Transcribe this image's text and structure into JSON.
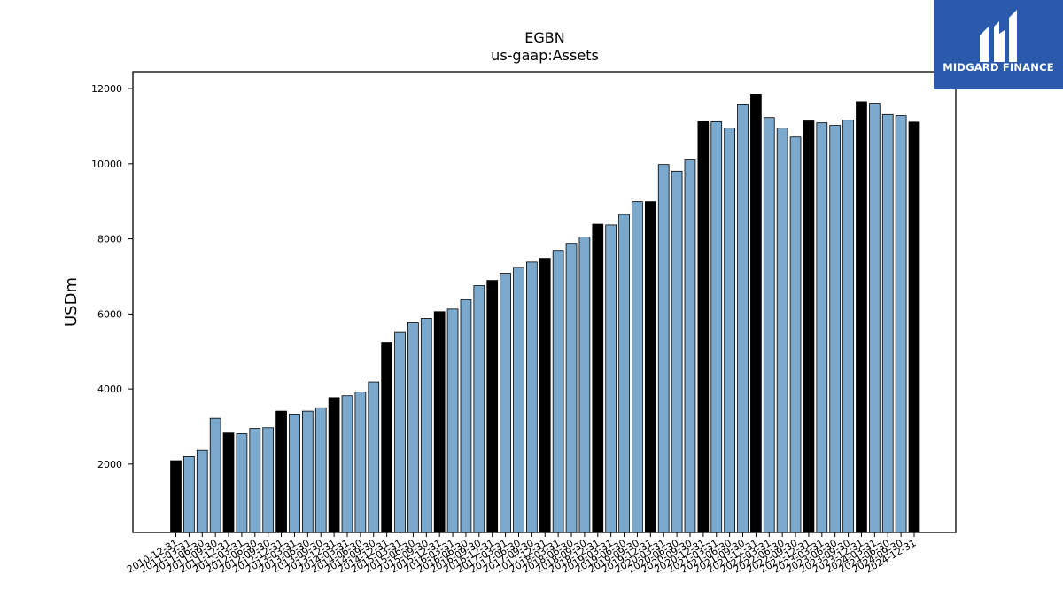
{
  "chart_data": {
    "type": "bar",
    "title": "EGBN",
    "subtitle": "us-gaap:Assets",
    "ylabel": "USDm",
    "xlabel": "",
    "ylim": [
      180,
      12450
    ],
    "yticks": [
      2000,
      4000,
      6000,
      8000,
      10000,
      12000
    ],
    "grid": false,
    "colors": {
      "annual": "#000000",
      "quarter": "#7aa9cd",
      "edge": "#000000"
    },
    "categories": [
      "2010-12-31",
      "2011-03-31",
      "2011-06-30",
      "2011-09-30",
      "2011-12-31",
      "2012-03-31",
      "2012-06-30",
      "2012-09-30",
      "2012-12-31",
      "2013-03-31",
      "2013-06-30",
      "2013-09-30",
      "2013-12-31",
      "2014-03-31",
      "2014-06-30",
      "2014-09-30",
      "2014-12-31",
      "2015-03-31",
      "2015-06-30",
      "2015-09-30",
      "2015-12-31",
      "2016-03-31",
      "2016-06-30",
      "2016-09-30",
      "2016-12-31",
      "2017-03-31",
      "2017-06-30",
      "2017-09-30",
      "2017-12-31",
      "2018-03-31",
      "2018-06-30",
      "2018-09-30",
      "2018-12-31",
      "2019-03-31",
      "2019-06-30",
      "2019-09-30",
      "2019-12-31",
      "2020-03-31",
      "2020-06-30",
      "2020-09-30",
      "2020-12-31",
      "2021-03-31",
      "2021-06-30",
      "2021-09-30",
      "2021-12-31",
      "2022-03-31",
      "2022-06-30",
      "2022-09-30",
      "2022-12-31",
      "2023-03-31",
      "2023-06-30",
      "2023-09-30",
      "2023-12-31",
      "2024-03-31",
      "2024-06-30",
      "2024-09-30",
      "2024-12-31"
    ],
    "values": [
      2090,
      2200,
      2370,
      3220,
      2830,
      2810,
      2950,
      2970,
      3410,
      3330,
      3410,
      3500,
      3770,
      3820,
      3920,
      4190,
      5240,
      5510,
      5760,
      5880,
      6060,
      6130,
      6380,
      6750,
      6890,
      7080,
      7240,
      7380,
      7480,
      7690,
      7880,
      8050,
      8390,
      8370,
      8650,
      8990,
      8990,
      9980,
      9800,
      10100,
      11120,
      11120,
      10950,
      11590,
      11850,
      11230,
      10950,
      10710,
      11140,
      11090,
      11020,
      11160,
      11650,
      11610,
      11310,
      11280,
      11110
    ],
    "annual": [
      true,
      false,
      false,
      false,
      true,
      false,
      false,
      false,
      true,
      false,
      false,
      false,
      true,
      false,
      false,
      false,
      true,
      false,
      false,
      false,
      true,
      false,
      false,
      false,
      true,
      false,
      false,
      false,
      true,
      false,
      false,
      false,
      true,
      false,
      false,
      false,
      true,
      false,
      false,
      false,
      true,
      false,
      false,
      false,
      true,
      false,
      false,
      false,
      true,
      false,
      false,
      false,
      true,
      false,
      false,
      false,
      true
    ]
  },
  "logo": {
    "text": "MIDGARD FINANCE",
    "background": "#2b5aad"
  }
}
